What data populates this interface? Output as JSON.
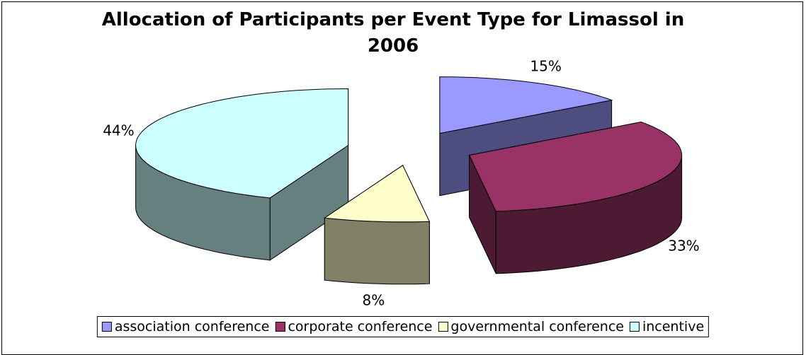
{
  "chart_data": {
    "type": "pie3d",
    "title": "Allocation of Participants per Event Type for Limassol in 2006",
    "categories": [
      "association conference",
      "corporate conference",
      "governmental conference",
      "incentive"
    ],
    "values": [
      15,
      33,
      8,
      44
    ],
    "value_labels": [
      "15%",
      "33%",
      "8%",
      "44%"
    ],
    "colors": [
      "#9999ff",
      "#993366",
      "#ffffcc",
      "#ccffff"
    ],
    "legend": "bottom"
  }
}
